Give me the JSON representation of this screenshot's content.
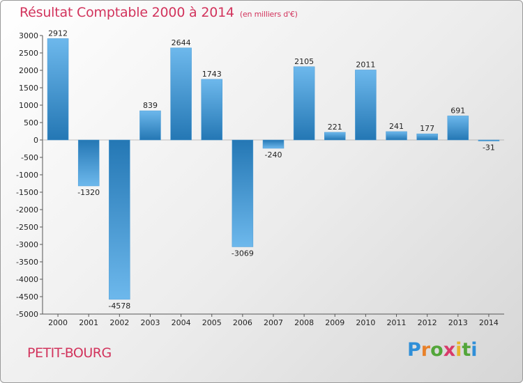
{
  "chart_data": {
    "type": "bar",
    "title": "Résultat Comptable 2000 à 2014",
    "subtitle": "(en milliers d'€)",
    "xlabel": "",
    "ylabel": "",
    "ylim": [
      -5000,
      3000
    ],
    "yticks": [
      3000,
      2500,
      2000,
      1500,
      1000,
      500,
      0,
      -500,
      -1000,
      -1500,
      -2000,
      -2500,
      -3000,
      -3500,
      -4000,
      -4500,
      -5000
    ],
    "grid": false,
    "categories": [
      "2000",
      "2001",
      "2002",
      "2003",
      "2004",
      "2005",
      "2006",
      "2007",
      "2008",
      "2009",
      "2010",
      "2011",
      "2012",
      "2013",
      "2014"
    ],
    "values": [
      2912,
      -1320,
      -4578,
      839,
      2644,
      1743,
      -3069,
      -240,
      2105,
      221,
      2011,
      241,
      177,
      691,
      -31
    ]
  },
  "commune": "PETIT-BOURG",
  "logo": {
    "letters": [
      "P",
      "r",
      "o",
      "x",
      "i",
      "t",
      "i"
    ],
    "colors": [
      "#2f8fd8",
      "#e8812a",
      "#53a63a",
      "#d83a6a",
      "#e8b52a",
      "#53a63a",
      "#2f8fd8"
    ]
  },
  "colors": {
    "bar_light": "#6db8ec",
    "bar_dark": "#2477b4",
    "accent": "#d2335c"
  }
}
